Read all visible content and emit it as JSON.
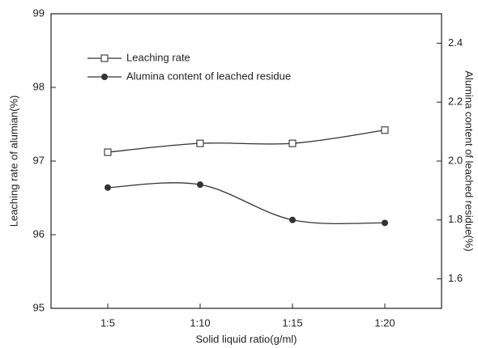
{
  "chart_data": {
    "type": "line",
    "x_label": "Solid liquid ratio(g/ml)",
    "y_label": "Leaching rate of alumian(%)",
    "y2_label": "Alumina content of leached residue(%)",
    "categories": [
      "1:5",
      "1:10",
      "1:15",
      "1:20"
    ],
    "series": [
      {
        "name": "Leaching rate",
        "color": "#333333",
        "marker": "open-square",
        "values": [
          97.12,
          97.24,
          97.24,
          97.42
        ]
      },
      {
        "name": "Alumina content of leached residue",
        "color": "#333333",
        "marker": "filled-circle",
        "axis": "y2",
        "values": [
          1.91,
          1.92,
          1.8,
          1.79
        ]
      }
    ],
    "ylim": [
      95,
      99
    ],
    "yticks": [
      95,
      96,
      97,
      98,
      99
    ],
    "y2lim": [
      1.5,
      2.5
    ],
    "y2ticks": [
      1.6,
      1.8,
      {
        "value": 2,
        "label": "2.0"
      },
      2.2,
      2.4
    ],
    "legend": "upper left",
    "smooth": true
  }
}
